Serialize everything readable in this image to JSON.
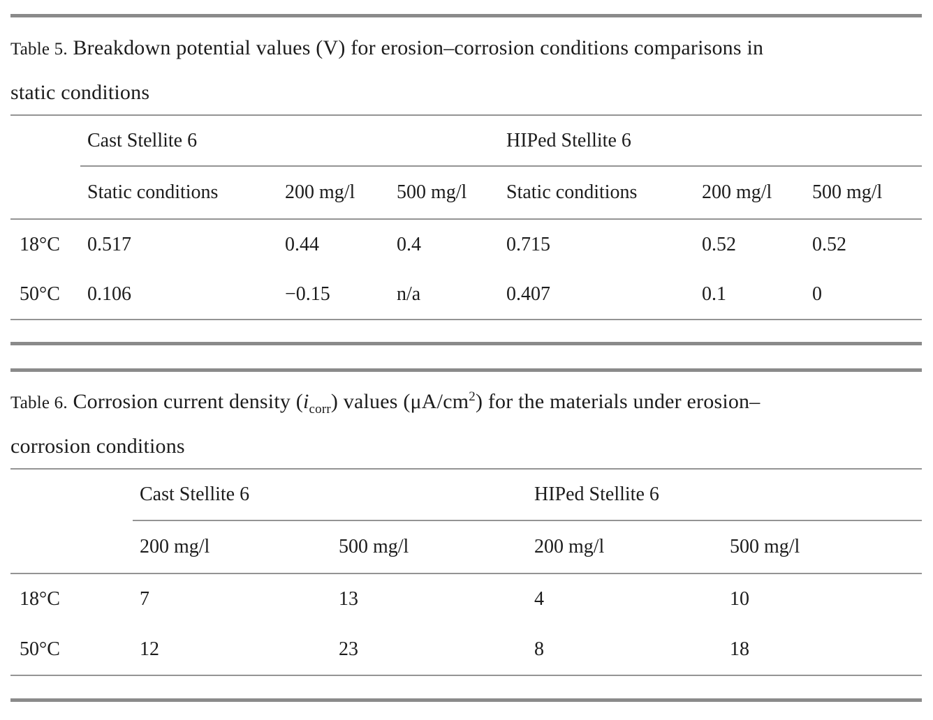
{
  "colors": {
    "background": "#ffffff",
    "text": "#1c1c1c",
    "rule_thick": "#8a8a8a",
    "rule_thin": "#949494"
  },
  "table5": {
    "label": "Table 5.",
    "caption_line1": "Breakdown potential values (V) for erosion–corrosion conditions comparisons in",
    "caption_line2": "static conditions",
    "group_headers": [
      "Cast Stellite 6",
      "HIPed Stellite 6"
    ],
    "sub_headers": [
      "Static conditions",
      "200 mg/l",
      "500 mg/l",
      "Static conditions",
      "200 mg/l",
      "500 mg/l"
    ],
    "rows": [
      {
        "label": "18°C",
        "cells": [
          "0.517",
          "0.44",
          "0.4",
          "0.715",
          "0.52",
          "0.52"
        ]
      },
      {
        "label": "50°C",
        "cells": [
          "0.106",
          "−0.15",
          "n/a",
          "0.407",
          "0.1",
          "0"
        ]
      }
    ]
  },
  "table6": {
    "label": "Table 6.",
    "caption": {
      "pre": "Corrosion current density (",
      "var": "i",
      "var_sub": "corr",
      "mid": ") values (μA/cm",
      "sup": "2",
      "line1_end": ") for the materials under erosion–",
      "line2": "corrosion conditions"
    },
    "group_headers": [
      "Cast Stellite 6",
      "HIPed Stellite 6"
    ],
    "sub_headers": [
      "200 mg/l",
      "500 mg/l",
      "200 mg/l",
      "500 mg/l"
    ],
    "rows": [
      {
        "label": "18°C",
        "cells": [
          "7",
          "13",
          "4",
          "10"
        ]
      },
      {
        "label": "50°C",
        "cells": [
          "12",
          "23",
          "8",
          "18"
        ]
      }
    ]
  }
}
